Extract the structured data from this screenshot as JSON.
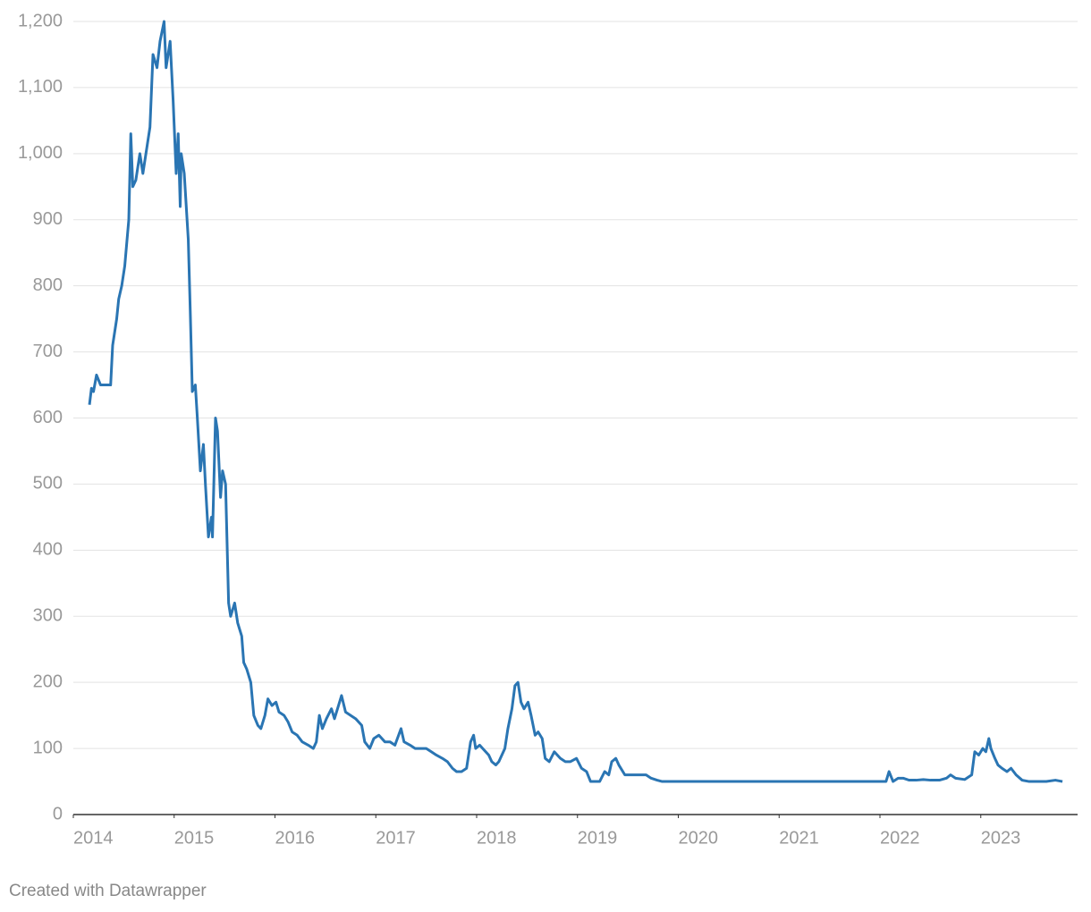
{
  "chart_data": {
    "type": "line",
    "credit": "Created with Datawrapper",
    "x": [
      2014.16,
      2014.18,
      2014.2,
      2014.23,
      2014.27,
      2014.32,
      2014.37,
      2014.39,
      2014.43,
      2014.45,
      2014.48,
      2014.51,
      2014.55,
      2014.57,
      2014.59,
      2014.62,
      2014.66,
      2014.69,
      2014.73,
      2014.76,
      2014.79,
      2014.83,
      2014.86,
      2014.9,
      2014.92,
      2014.96,
      2014.99,
      2015.02,
      2015.04,
      2015.06,
      2015.07,
      2015.1,
      2015.14,
      2015.16,
      2015.18,
      2015.21,
      2015.23,
      2015.26,
      2015.29,
      2015.31,
      2015.34,
      2015.37,
      2015.38,
      2015.41,
      2015.43,
      2015.46,
      2015.48,
      2015.51,
      2015.53,
      2015.54,
      2015.56,
      2015.6,
      2015.63,
      2015.67,
      2015.69,
      2015.72,
      2015.76,
      2015.79,
      2015.83,
      2015.86,
      2015.9,
      2015.93,
      2015.97,
      2016.01,
      2016.04,
      2016.09,
      2016.13,
      2016.17,
      2016.22,
      2016.27,
      2016.33,
      2016.38,
      2016.41,
      2016.44,
      2016.47,
      2016.51,
      2016.56,
      2016.59,
      2016.63,
      2016.66,
      2016.7,
      2016.75,
      2016.8,
      2016.86,
      2016.89,
      2016.94,
      2016.98,
      2017.03,
      2017.09,
      2017.14,
      2017.19,
      2017.25,
      2017.28,
      2017.34,
      2017.39,
      2017.44,
      2017.5,
      2017.55,
      2017.6,
      2017.66,
      2017.71,
      2017.76,
      2017.8,
      2017.85,
      2017.9,
      2017.94,
      2017.97,
      2017.99,
      2018.03,
      2018.06,
      2018.12,
      2018.15,
      2018.19,
      2018.22,
      2018.28,
      2018.31,
      2018.35,
      2018.38,
      2018.41,
      2018.44,
      2018.47,
      2018.51,
      2018.54,
      2018.58,
      2018.61,
      2018.65,
      2018.68,
      2018.72,
      2018.77,
      2018.83,
      2018.88,
      2018.93,
      2018.99,
      2019.04,
      2019.09,
      2019.13,
      2019.22,
      2019.27,
      2019.31,
      2019.34,
      2019.38,
      2019.41,
      2019.47,
      2019.52,
      2019.57,
      2019.63,
      2019.68,
      2019.73,
      2019.79,
      2019.84,
      2020.37,
      2021.08,
      2021.7,
      2022.06,
      2022.09,
      2022.13,
      2022.18,
      2022.23,
      2022.29,
      2022.36,
      2022.43,
      2022.5,
      2022.59,
      2022.66,
      2022.7,
      2022.75,
      2022.84,
      2022.91,
      2022.94,
      2022.98,
      2023.02,
      2023.05,
      2023.08,
      2023.1,
      2023.14,
      2023.17,
      2023.21,
      2023.26,
      2023.3,
      2023.35,
      2023.41,
      2023.48,
      2023.57,
      2023.65,
      2023.74,
      2023.81
    ],
    "series": [
      {
        "color": "#2a75b3",
        "values": [
          620,
          645,
          640,
          665,
          650,
          650,
          650,
          710,
          750,
          780,
          800,
          830,
          900,
          1030,
          950,
          960,
          1000,
          970,
          1010,
          1040,
          1150,
          1130,
          1170,
          1200,
          1130,
          1170,
          1080,
          970,
          1030,
          920,
          1000,
          970,
          870,
          760,
          640,
          650,
          600,
          520,
          560,
          500,
          420,
          450,
          420,
          600,
          580,
          480,
          520,
          500,
          380,
          320,
          300,
          320,
          290,
          270,
          230,
          220,
          200,
          150,
          135,
          130,
          150,
          175,
          165,
          170,
          155,
          150,
          140,
          125,
          120,
          110,
          105,
          100,
          110,
          150,
          130,
          145,
          160,
          145,
          165,
          180,
          155,
          150,
          145,
          135,
          110,
          100,
          115,
          120,
          110,
          110,
          105,
          130,
          110,
          105,
          100,
          100,
          100,
          95,
          90,
          85,
          80,
          70,
          65,
          65,
          70,
          110,
          120,
          100,
          105,
          100,
          90,
          80,
          75,
          80,
          100,
          130,
          160,
          195,
          200,
          170,
          160,
          170,
          150,
          120,
          125,
          115,
          85,
          80,
          95,
          85,
          80,
          80,
          85,
          70,
          65,
          50,
          50,
          65,
          60,
          80,
          85,
          75,
          60,
          60,
          60,
          60,
          60,
          55,
          52,
          50,
          50,
          50,
          50,
          50,
          65,
          50,
          55,
          55,
          52,
          52,
          53,
          52,
          52,
          55,
          60,
          55,
          53,
          60,
          95,
          90,
          100,
          95,
          115,
          100,
          85,
          75,
          70,
          65,
          70,
          60,
          52,
          50,
          50,
          50,
          52,
          50
        ]
      }
    ],
    "xlim": [
      2014,
      2023.96
    ],
    "xticks": [
      2014,
      2015,
      2016,
      2017,
      2018,
      2019,
      2020,
      2021,
      2022,
      2023
    ],
    "ylim": [
      0,
      1200
    ],
    "yticks": [
      0,
      100,
      200,
      300,
      400,
      500,
      600,
      700,
      800,
      900,
      {
        "value": 1000,
        "label": "1,000"
      },
      {
        "value": 1100,
        "label": "1,100"
      },
      {
        "value": 1200,
        "label": "1,200"
      }
    ],
    "grid": true
  }
}
